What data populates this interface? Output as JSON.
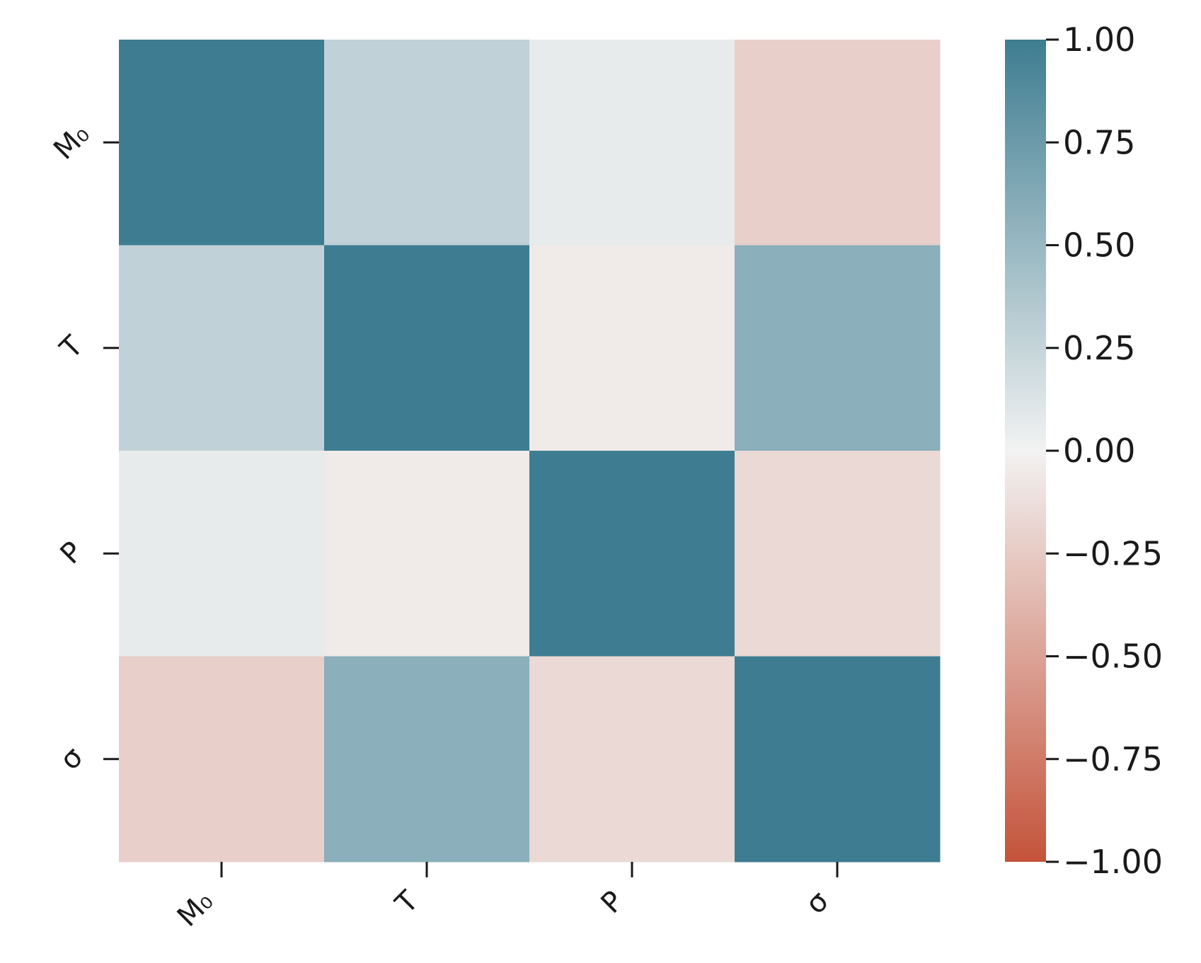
{
  "chart_data": {
    "type": "heatmap",
    "title": "",
    "xlabel": "",
    "ylabel": "",
    "x_categories": [
      "M₀",
      "T",
      "P",
      "σ"
    ],
    "y_categories": [
      "M₀",
      "T",
      "P",
      "σ"
    ],
    "values": [
      [
        1.0,
        0.28,
        0.06,
        -0.22
      ],
      [
        0.28,
        1.0,
        -0.05,
        0.57
      ],
      [
        0.06,
        -0.05,
        1.0,
        -0.16
      ],
      [
        -0.22,
        0.57,
        -0.16,
        1.0
      ]
    ],
    "colorbar": {
      "vmin": -1.0,
      "vmax": 1.0,
      "ticks": [
        "1.00",
        "0.75",
        "0.50",
        "0.25",
        "0.00",
        "−0.25",
        "−0.50",
        "−0.75",
        "−1.00"
      ],
      "low_color": "#c4533a",
      "mid_color": "#f2f2f2",
      "high_color": "#3e7d91"
    },
    "grid": false,
    "legend": "colorbar-right"
  }
}
